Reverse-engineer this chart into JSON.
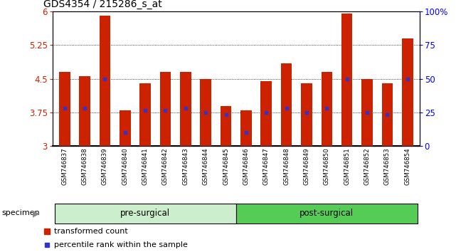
{
  "title": "GDS4354 / 215286_s_at",
  "samples": [
    "GSM746837",
    "GSM746838",
    "GSM746839",
    "GSM746840",
    "GSM746841",
    "GSM746842",
    "GSM746843",
    "GSM746844",
    "GSM746845",
    "GSM746846",
    "GSM746847",
    "GSM746848",
    "GSM746849",
    "GSM746850",
    "GSM746851",
    "GSM746852",
    "GSM746853",
    "GSM746854"
  ],
  "bar_heights": [
    4.65,
    4.55,
    5.9,
    3.8,
    4.4,
    4.65,
    4.65,
    4.5,
    3.9,
    3.8,
    4.45,
    4.85,
    4.4,
    4.65,
    5.95,
    4.5,
    4.4,
    5.4
  ],
  "blue_markers": [
    3.85,
    3.85,
    4.5,
    3.3,
    3.8,
    3.8,
    3.85,
    3.75,
    3.7,
    3.3,
    3.75,
    3.85,
    3.75,
    3.85,
    4.5,
    3.75,
    3.7,
    4.5
  ],
  "bar_color": "#cc2200",
  "marker_color": "#3333cc",
  "ymin": 3.0,
  "ymax": 6.0,
  "yticks": [
    3.0,
    3.75,
    4.5,
    5.25,
    6.0
  ],
  "ytick_labels": [
    "3",
    "3.75",
    "4.5",
    "5.25",
    "6"
  ],
  "right_ytick_percents": [
    0,
    25,
    50,
    75,
    100
  ],
  "right_ytick_labels": [
    "0",
    "25",
    "50",
    "75",
    "100%"
  ],
  "grid_lines": [
    3.75,
    4.5,
    5.25
  ],
  "pre_surgical_label": "pre-surgical",
  "post_surgical_label": "post-surgical",
  "specimen_label": "specimen",
  "legend_red": "transformed count",
  "legend_blue": "percentile rank within the sample",
  "bg_plot": "#ffffff",
  "bg_xtick": "#cccccc",
  "bg_presurg": "#cceecc",
  "bg_postsurg": "#55cc55",
  "bar_width": 0.55,
  "n_pre": 9,
  "n_post": 9,
  "title_fontsize": 10,
  "axis_fontsize": 8.5,
  "xtick_fontsize": 6.2,
  "legend_fontsize": 8
}
